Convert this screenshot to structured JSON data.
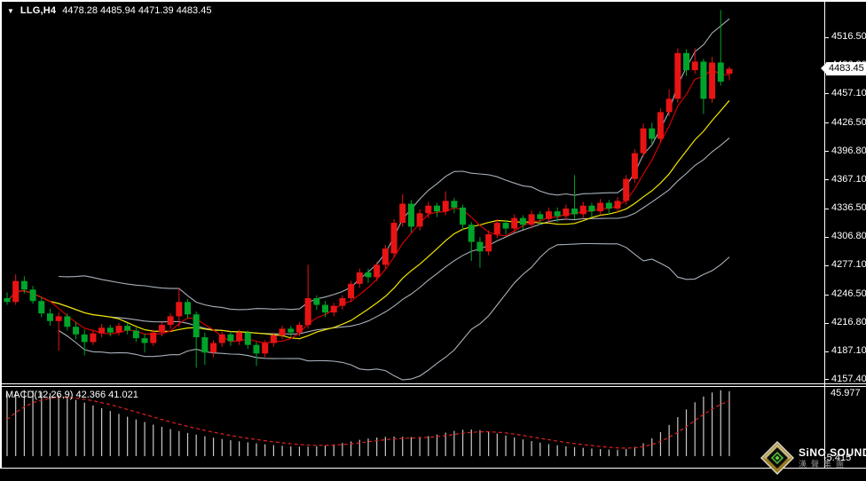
{
  "header": {
    "symbol_period": "LLG,H4",
    "ohlc_text": "4478.28 4485.94 4471.39 4483.45",
    "dropdown_icon": "down-triangle"
  },
  "price_axis": {
    "labels": [
      "4516.50",
      "4486.80",
      "4457.10",
      "4426.50",
      "4396.80",
      "4367.10",
      "4336.50",
      "4306.80",
      "4277.10",
      "4246.50",
      "4216.80",
      "4187.10",
      "4157.40"
    ],
    "current_price": "4483.45"
  },
  "macd_panel": {
    "label": "MACD(12,26,9) 42.366 41.021",
    "scale_max": "45.977",
    "scale_min": "-5.415"
  },
  "logo": {
    "brand": "SiNO SOUND",
    "brand_cn": "漢聲集團"
  },
  "colors": {
    "background": "#000000",
    "bull_candle_red": "#e81414",
    "bear_candle_green": "#00a42a",
    "bollinger_gray": "#a8b0ba",
    "ma_fast_red": "#d40000",
    "ma_slow_yellow": "#f0e400",
    "macd_histogram": "#c9c9c9",
    "macd_signal_red": "#e02020",
    "axis_text": "#ffffff",
    "price_box_bg": "#ffffff",
    "frame_white": "#ffffff"
  },
  "chart_data": {
    "type": "candlestick",
    "title": "LLG,H4",
    "note": "red body = bullish, green body = bearish; Bollinger bands gray; fast MA red; slow MA yellow",
    "current_ohlc": {
      "open": 4478.28,
      "high": 4485.94,
      "low": 4471.39,
      "close": 4483.45
    },
    "y_axis_ticks": [
      4516.5,
      4486.8,
      4457.1,
      4426.5,
      4396.8,
      4367.1,
      4336.5,
      4306.8,
      4277.1,
      4246.5,
      4216.8,
      4187.1,
      4157.4
    ],
    "ylim": [
      4145,
      4530
    ],
    "grid": false,
    "candles": [
      [
        4243,
        4249,
        4236,
        4239
      ],
      [
        4239,
        4268,
        4236,
        4261
      ],
      [
        4261,
        4266,
        4248,
        4252
      ],
      [
        4252,
        4256,
        4237,
        4240
      ],
      [
        4240,
        4244,
        4223,
        4227
      ],
      [
        4227,
        4232,
        4214,
        4219
      ],
      [
        4219,
        4228,
        4188,
        4224
      ],
      [
        4224,
        4227,
        4209,
        4213
      ],
      [
        4213,
        4218,
        4200,
        4205
      ],
      [
        4205,
        4210,
        4183,
        4197
      ],
      [
        4197,
        4209,
        4194,
        4206
      ],
      [
        4206,
        4216,
        4202,
        4212
      ],
      [
        4212,
        4215,
        4203,
        4207
      ],
      [
        4207,
        4217,
        4204,
        4214
      ],
      [
        4214,
        4217,
        4205,
        4209
      ],
      [
        4209,
        4212,
        4197,
        4201
      ],
      [
        4201,
        4206,
        4186,
        4196
      ],
      [
        4196,
        4210,
        4193,
        4207
      ],
      [
        4207,
        4218,
        4203,
        4215
      ],
      [
        4215,
        4227,
        4211,
        4224
      ],
      [
        4224,
        4253,
        4213,
        4239
      ],
      [
        4239,
        4242,
        4222,
        4226
      ],
      [
        4226,
        4229,
        4170,
        4202
      ],
      [
        4202,
        4207,
        4173,
        4186
      ],
      [
        4186,
        4199,
        4181,
        4196
      ],
      [
        4196,
        4208,
        4192,
        4205
      ],
      [
        4205,
        4208,
        4193,
        4198
      ],
      [
        4198,
        4210,
        4194,
        4207
      ],
      [
        4207,
        4209,
        4190,
        4194
      ],
      [
        4194,
        4197,
        4172,
        4185
      ],
      [
        4185,
        4199,
        4181,
        4196
      ],
      [
        4196,
        4207,
        4192,
        4204
      ],
      [
        4204,
        4214,
        4200,
        4211
      ],
      [
        4211,
        4214,
        4202,
        4207
      ],
      [
        4207,
        4218,
        4203,
        4215
      ],
      [
        4215,
        4278,
        4211,
        4243
      ],
      [
        4243,
        4246,
        4231,
        4236
      ],
      [
        4236,
        4240,
        4223,
        4228
      ],
      [
        4228,
        4238,
        4224,
        4235
      ],
      [
        4235,
        4246,
        4231,
        4243
      ],
      [
        4243,
        4261,
        4239,
        4258
      ],
      [
        4258,
        4274,
        4254,
        4270
      ],
      [
        4270,
        4274,
        4259,
        4265
      ],
      [
        4265,
        4281,
        4261,
        4278
      ],
      [
        4278,
        4299,
        4274,
        4295
      ],
      [
        4290,
        4326,
        4286,
        4322
      ],
      [
        4322,
        4352,
        4318,
        4342
      ],
      [
        4342,
        4346,
        4312,
        4318
      ],
      [
        4318,
        4336,
        4314,
        4332
      ],
      [
        4332,
        4344,
        4327,
        4340
      ],
      [
        4340,
        4343,
        4328,
        4334
      ],
      [
        4334,
        4355,
        4330,
        4345
      ],
      [
        4345,
        4348,
        4332,
        4338
      ],
      [
        4338,
        4341,
        4314,
        4320
      ],
      [
        4320,
        4323,
        4282,
        4302
      ],
      [
        4302,
        4307,
        4275,
        4292
      ],
      [
        4292,
        4314,
        4288,
        4310
      ],
      [
        4310,
        4326,
        4306,
        4322
      ],
      [
        4322,
        4325,
        4310,
        4316
      ],
      [
        4316,
        4331,
        4312,
        4327
      ],
      [
        4327,
        4330,
        4315,
        4320
      ],
      [
        4320,
        4335,
        4316,
        4331
      ],
      [
        4331,
        4334,
        4320,
        4326
      ],
      [
        4326,
        4338,
        4322,
        4334
      ],
      [
        4334,
        4338,
        4323,
        4329
      ],
      [
        4329,
        4341,
        4325,
        4337
      ],
      [
        4337,
        4372,
        4326,
        4331
      ],
      [
        4331,
        4344,
        4327,
        4340
      ],
      [
        4340,
        4343,
        4328,
        4334
      ],
      [
        4334,
        4347,
        4330,
        4343
      ],
      [
        4343,
        4346,
        4331,
        4337
      ],
      [
        4337,
        4349,
        4333,
        4345
      ],
      [
        4345,
        4372,
        4341,
        4368
      ],
      [
        4368,
        4399,
        4364,
        4395
      ],
      [
        4395,
        4426,
        4391,
        4421
      ],
      [
        4421,
        4427,
        4404,
        4410
      ],
      [
        4410,
        4442,
        4406,
        4438
      ],
      [
        4438,
        4462,
        4434,
        4452
      ],
      [
        4452,
        4505,
        4448,
        4500
      ],
      [
        4500,
        4504,
        4476,
        4482
      ],
      [
        4482,
        4505,
        4478,
        4491
      ],
      [
        4491,
        4494,
        4436,
        4452
      ],
      [
        4452,
        4496,
        4448,
        4490
      ],
      [
        4490,
        4545,
        4466,
        4470
      ],
      [
        4478.28,
        4485.94,
        4471.39,
        4483.45
      ]
    ],
    "indicators": {
      "bollinger": {
        "period": 20,
        "deviation": 2,
        "color": "#a8b0ba"
      },
      "ma_fast": {
        "period": 5,
        "color": "#d40000"
      },
      "ma_slow": {
        "period": 13,
        "color": "#f0e400"
      }
    },
    "macd": {
      "params": [
        12,
        26,
        9
      ],
      "value": 42.366,
      "signal_value": 41.021,
      "scale": [
        -5.415,
        45.977
      ],
      "histogram": [
        43.5,
        45.2,
        46.0,
        45.8,
        45.0,
        44.0,
        42.6,
        41.0,
        39.2,
        37.3,
        35.4,
        33.5,
        31.5,
        29.5,
        27.5,
        25.6,
        23.8,
        22.0,
        20.4,
        18.9,
        17.5,
        16.2,
        15.0,
        13.9,
        12.9,
        12.0,
        11.1,
        10.3,
        9.6,
        8.9,
        8.3,
        7.7,
        7.2,
        6.8,
        6.6,
        6.6,
        6.9,
        7.4,
        8.2,
        9.2,
        10.3,
        11.4,
        12.3,
        13.0,
        13.5,
        13.7,
        13.6,
        13.3,
        13.4,
        14.0,
        15.1,
        16.4,
        17.6,
        18.4,
        18.6,
        18.1,
        17.1,
        15.8,
        14.4,
        13.0,
        11.7,
        10.5,
        9.4,
        8.4,
        7.6,
        6.9,
        6.3,
        5.8,
        5.3,
        4.9,
        4.6,
        4.5,
        5.0,
        6.5,
        9.0,
        12.5,
        16.8,
        21.8,
        27.2,
        32.6,
        37.6,
        41.6,
        44.4,
        45.977,
        45.3
      ]
    }
  }
}
